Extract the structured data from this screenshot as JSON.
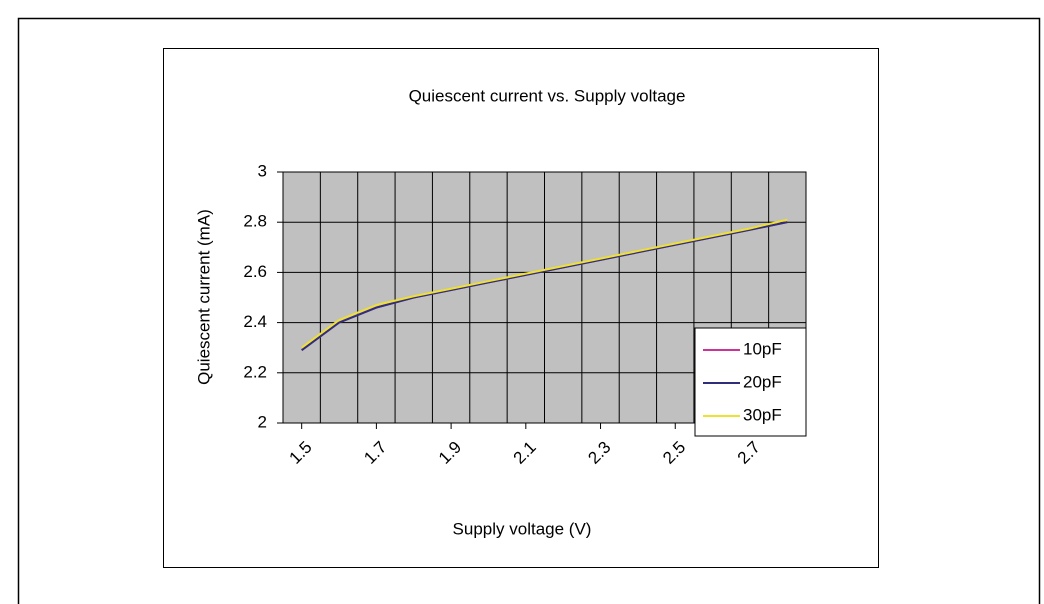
{
  "chart_data": {
    "type": "line",
    "title": "Quiescent current vs. Supply voltage",
    "xlabel": "Supply voltage (V)",
    "ylabel": "Quiescent current (mA)",
    "x": [
      1.5,
      1.6,
      1.7,
      1.8,
      1.9,
      2.0,
      2.1,
      2.2,
      2.3,
      2.4,
      2.5,
      2.6,
      2.7,
      2.8
    ],
    "series": [
      {
        "name": "10pF",
        "color": "#cc3399",
        "values": [
          2.29,
          2.4,
          2.46,
          2.5,
          2.53,
          2.56,
          2.59,
          2.62,
          2.65,
          2.68,
          2.71,
          2.74,
          2.77,
          2.8
        ]
      },
      {
        "name": "20pF",
        "color": "#2e2e7a",
        "values": [
          2.29,
          2.4,
          2.46,
          2.5,
          2.53,
          2.56,
          2.59,
          2.62,
          2.65,
          2.68,
          2.71,
          2.74,
          2.77,
          2.8
        ]
      },
      {
        "name": "30pF",
        "color": "#f0e130",
        "values": [
          2.3,
          2.41,
          2.47,
          2.505,
          2.535,
          2.565,
          2.595,
          2.625,
          2.655,
          2.685,
          2.715,
          2.745,
          2.775,
          2.81
        ]
      }
    ],
    "xlim": [
      1.45,
      2.85
    ],
    "xticks": [
      1.5,
      1.7,
      1.9,
      2.1,
      2.3,
      2.5,
      2.7
    ],
    "xgrid": [
      1.55,
      1.65,
      1.75,
      1.85,
      1.95,
      2.05,
      2.15,
      2.25,
      2.35,
      2.45,
      2.55,
      2.65,
      2.75
    ],
    "ylim": [
      2,
      3
    ],
    "yticks": [
      2,
      2.2,
      2.4,
      2.6,
      2.8,
      3
    ],
    "grid": true,
    "plot_background": "#c0c0c0",
    "legend": "lower right"
  }
}
